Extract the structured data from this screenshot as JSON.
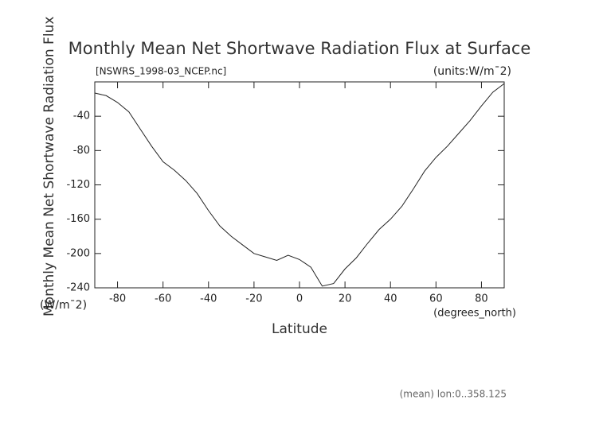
{
  "chart_data": {
    "type": "line",
    "title": "Monthly Mean Net Shortwave Radiation Flux at Surface",
    "subtitle": "[NSWRS_1998-03_NCEP.nc]",
    "units_note": "(units:W/m¯2)",
    "y_label": "Monthly Mean Net Shortwave Radiation Flux",
    "y_units": "(W/m¯2)",
    "x_label": "Latitude",
    "x_units": "(degrees_north)",
    "footer": "(mean) lon:0..358.125",
    "x": [
      -90,
      -85,
      -80,
      -75,
      -70,
      -65,
      -60,
      -55,
      -50,
      -45,
      -40,
      -35,
      -30,
      -25,
      -20,
      -15,
      -10,
      -5,
      0,
      5,
      10,
      15,
      20,
      25,
      30,
      35,
      40,
      45,
      50,
      55,
      60,
      65,
      70,
      75,
      80,
      85,
      90
    ],
    "series": [
      {
        "color": "#222222",
        "values": [
          -13,
          -16,
          -24,
          -35,
          -55,
          -75,
          -93,
          -103,
          -115,
          -130,
          -150,
          -168,
          -180,
          -190,
          -200,
          -204,
          -208,
          -202,
          -207,
          -216,
          -238,
          -235,
          -218,
          -205,
          -188,
          -172,
          -160,
          -145,
          -125,
          -104,
          -88,
          -75,
          -60,
          -45,
          -28,
          -12,
          -2
        ]
      }
    ],
    "xlim": [
      -90,
      90
    ],
    "xticks": [
      -80,
      -60,
      -40,
      -20,
      0,
      20,
      40,
      60,
      80
    ],
    "ylim": [
      -240,
      0
    ],
    "yticks": [
      -240,
      -200,
      -160,
      -120,
      -80,
      -40
    ]
  }
}
